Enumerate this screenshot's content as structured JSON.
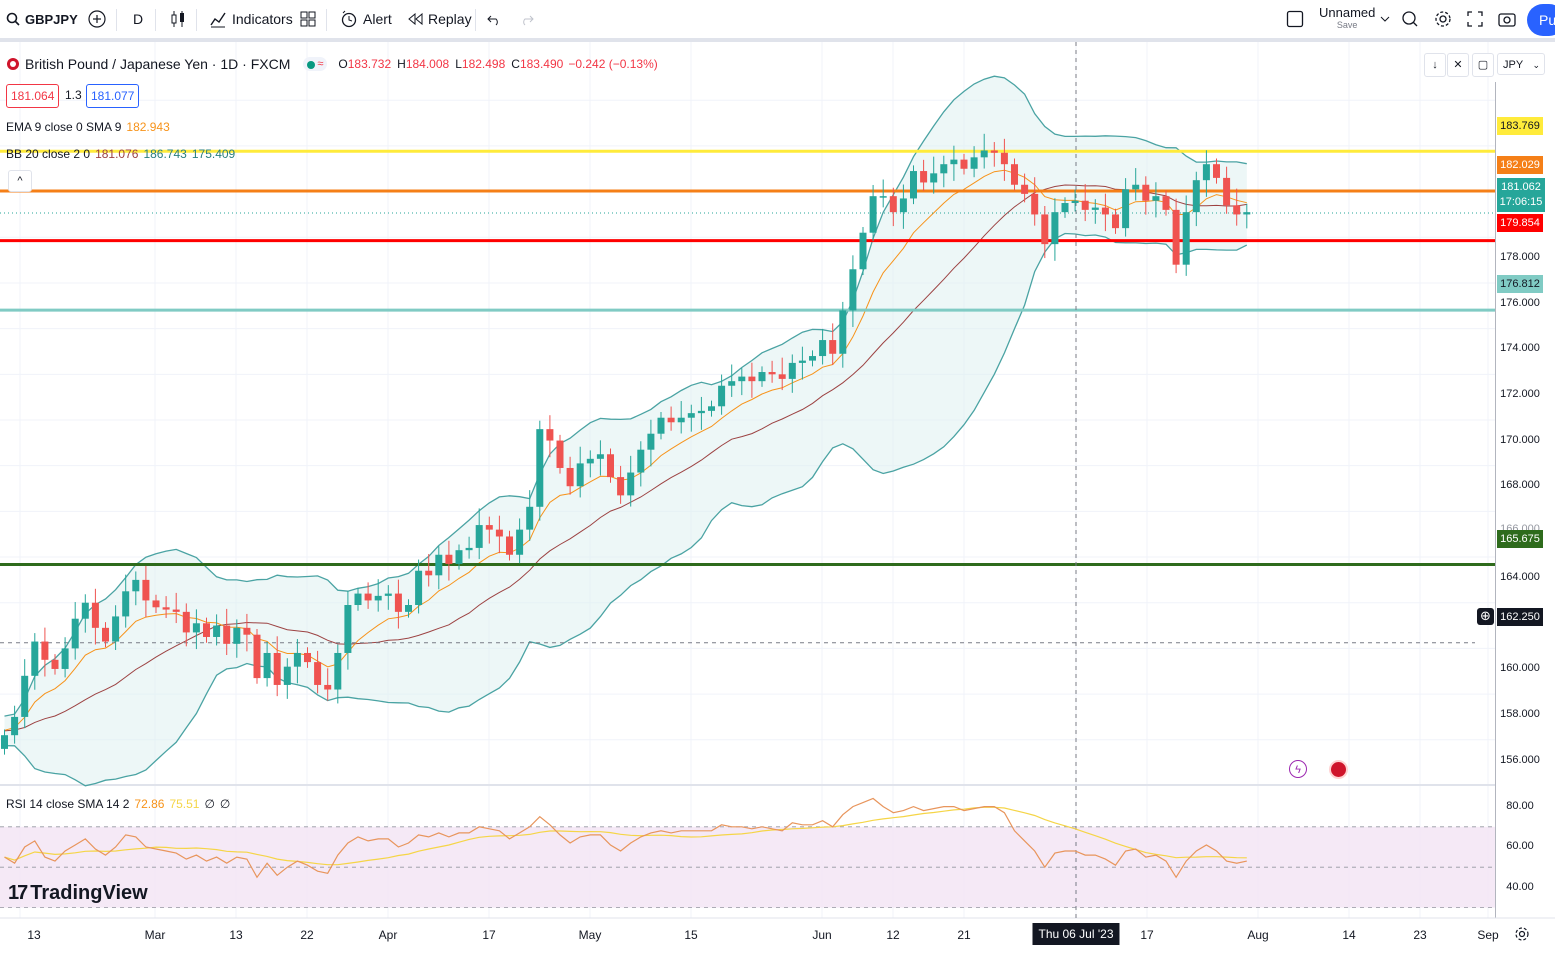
{
  "toolbar": {
    "symbol": "GBPJPY",
    "interval": "D",
    "indicators_label": "Indicators",
    "alert_label": "Alert",
    "replay_label": "Replay",
    "layout_name": "Unnamed",
    "layout_save": "Save",
    "publish_label": "Pu"
  },
  "legend": {
    "instrument": "British Pound / Japanese Yen · 1D · FXCM",
    "ohlc": [
      {
        "k": "O",
        "v": "183.732"
      },
      {
        "k": "H",
        "v": "184.008"
      },
      {
        "k": "L",
        "v": "182.498"
      },
      {
        "k": "C",
        "v": "183.490"
      }
    ],
    "change": "−0.242 (−0.13%)",
    "sell_price": "181.064",
    "spread": "1.3",
    "buy_price": "181.077",
    "ema_label": "EMA 9 close 0 SMA 9",
    "ema_value": "182.943",
    "bb_label": "BB 20 close 2 0",
    "bb_basis": "181.076",
    "bb_upper": "186.743",
    "bb_lower": "175.409",
    "collapse_icon": "chevron-up-icon"
  },
  "rsi": {
    "label": "RSI 14 close SMA 14 2",
    "value": "72.86",
    "sma_value": "75.51",
    "extra1": "∅",
    "extra2": "∅"
  },
  "currency": "JPY",
  "logo_text": "TradingView",
  "price_axis": [
    "183.769",
    "182.029",
    "181.062",
    "17:06:15",
    "179.854",
    "178.000",
    "176.812",
    "176.000",
    "174.000",
    "172.000",
    "170.000",
    "168.000",
    "166.000",
    "165.675",
    "164.000",
    "162.250",
    "160.000",
    "158.000",
    "156.000"
  ],
  "rsi_axis": [
    "80.00",
    "60.00",
    "40.00"
  ],
  "time_axis": [
    "13",
    "Mar",
    "13",
    "22",
    "Apr",
    "17",
    "May",
    "15",
    "Jun",
    "12",
    "21",
    "Thu 06 Jul '23",
    "17",
    "Aug",
    "14",
    "23",
    "Sep"
  ],
  "colors": {
    "up": "#26a69a",
    "down": "#ef5350",
    "ema": "#f7931a",
    "bb_basis": "#9c4242",
    "bb_band": "#4aa3a3",
    "yellow_line": "#ffeb3b",
    "orange_line": "#f57f17",
    "red_line": "#ff0000",
    "cyan_line": "#80cbc4",
    "green_line": "#2e6b1c"
  },
  "chart_data": {
    "type": "candlestick",
    "title": "British Pound / Japanese Yen · 1D · FXCM",
    "ylim": [
      155,
      186
    ],
    "horizontal_lines": [
      183.769,
      182.029,
      179.854,
      176.812,
      165.675
    ],
    "crosshair_price": 162.25,
    "last_price": 181.062,
    "closes": [
      158.2,
      159.0,
      160.8,
      162.3,
      161.5,
      161.1,
      162.0,
      163.3,
      164.0,
      162.9,
      162.3,
      163.4,
      164.5,
      165.0,
      164.1,
      163.8,
      163.7,
      163.6,
      162.7,
      163.1,
      162.5,
      163.0,
      162.2,
      162.9,
      162.6,
      160.7,
      161.8,
      160.4,
      161.2,
      161.8,
      161.4,
      160.4,
      160.2,
      161.8,
      163.9,
      164.4,
      164.1,
      164.3,
      164.4,
      163.6,
      163.9,
      165.4,
      165.2,
      166.1,
      165.7,
      166.3,
      166.4,
      167.4,
      167.2,
      166.9,
      166.1,
      167.2,
      168.2,
      171.6,
      171.1,
      169.9,
      169.1,
      170.1,
      170.3,
      170.5,
      169.5,
      168.7,
      169.7,
      170.7,
      171.4,
      172.1,
      171.9,
      172.1,
      172.3,
      172.4,
      172.6,
      173.5,
      173.7,
      173.9,
      173.7,
      174.1,
      174.0,
      173.8,
      174.5,
      174.6,
      174.8,
      175.5,
      174.9,
      176.8,
      178.6,
      180.2,
      181.8,
      181.8,
      181.1,
      181.7,
      182.9,
      182.4,
      182.8,
      183.2,
      183.4,
      183.0,
      183.5,
      183.8,
      183.7,
      183.2,
      182.3,
      181.9,
      181.0,
      179.7,
      181.1,
      181.5,
      181.6,
      181.2,
      181.3,
      181.0,
      180.4,
      182.1,
      182.3,
      181.6,
      181.8,
      181.2,
      178.8,
      181.1,
      182.5,
      183.2,
      182.6,
      181.4,
      181.0,
      181.1
    ],
    "rsi": [
      55,
      52,
      60,
      63,
      55,
      53,
      58,
      61,
      64,
      59,
      56,
      60,
      66,
      65,
      60,
      59,
      58,
      57,
      54,
      56,
      53,
      55,
      52,
      55,
      54,
      45,
      52,
      46,
      50,
      53,
      51,
      48,
      47,
      56,
      62,
      65,
      63,
      64,
      64,
      60,
      62,
      66,
      65,
      67,
      65,
      67,
      67,
      70,
      69,
      68,
      64,
      67,
      70,
      75,
      71,
      66,
      62,
      65,
      66,
      66,
      61,
      58,
      62,
      65,
      67,
      68,
      67,
      68,
      68,
      68,
      68,
      71,
      70,
      70,
      69,
      70,
      69,
      68,
      72,
      71,
      71,
      73,
      70,
      76,
      80,
      82,
      84,
      80,
      77,
      78,
      80,
      78,
      79,
      80,
      80,
      78,
      79,
      80,
      80,
      77,
      68,
      63,
      58,
      50,
      57,
      58,
      58,
      56,
      56,
      54,
      51,
      58,
      59,
      55,
      56,
      53,
      45,
      53,
      58,
      61,
      58,
      53,
      52,
      53
    ]
  }
}
